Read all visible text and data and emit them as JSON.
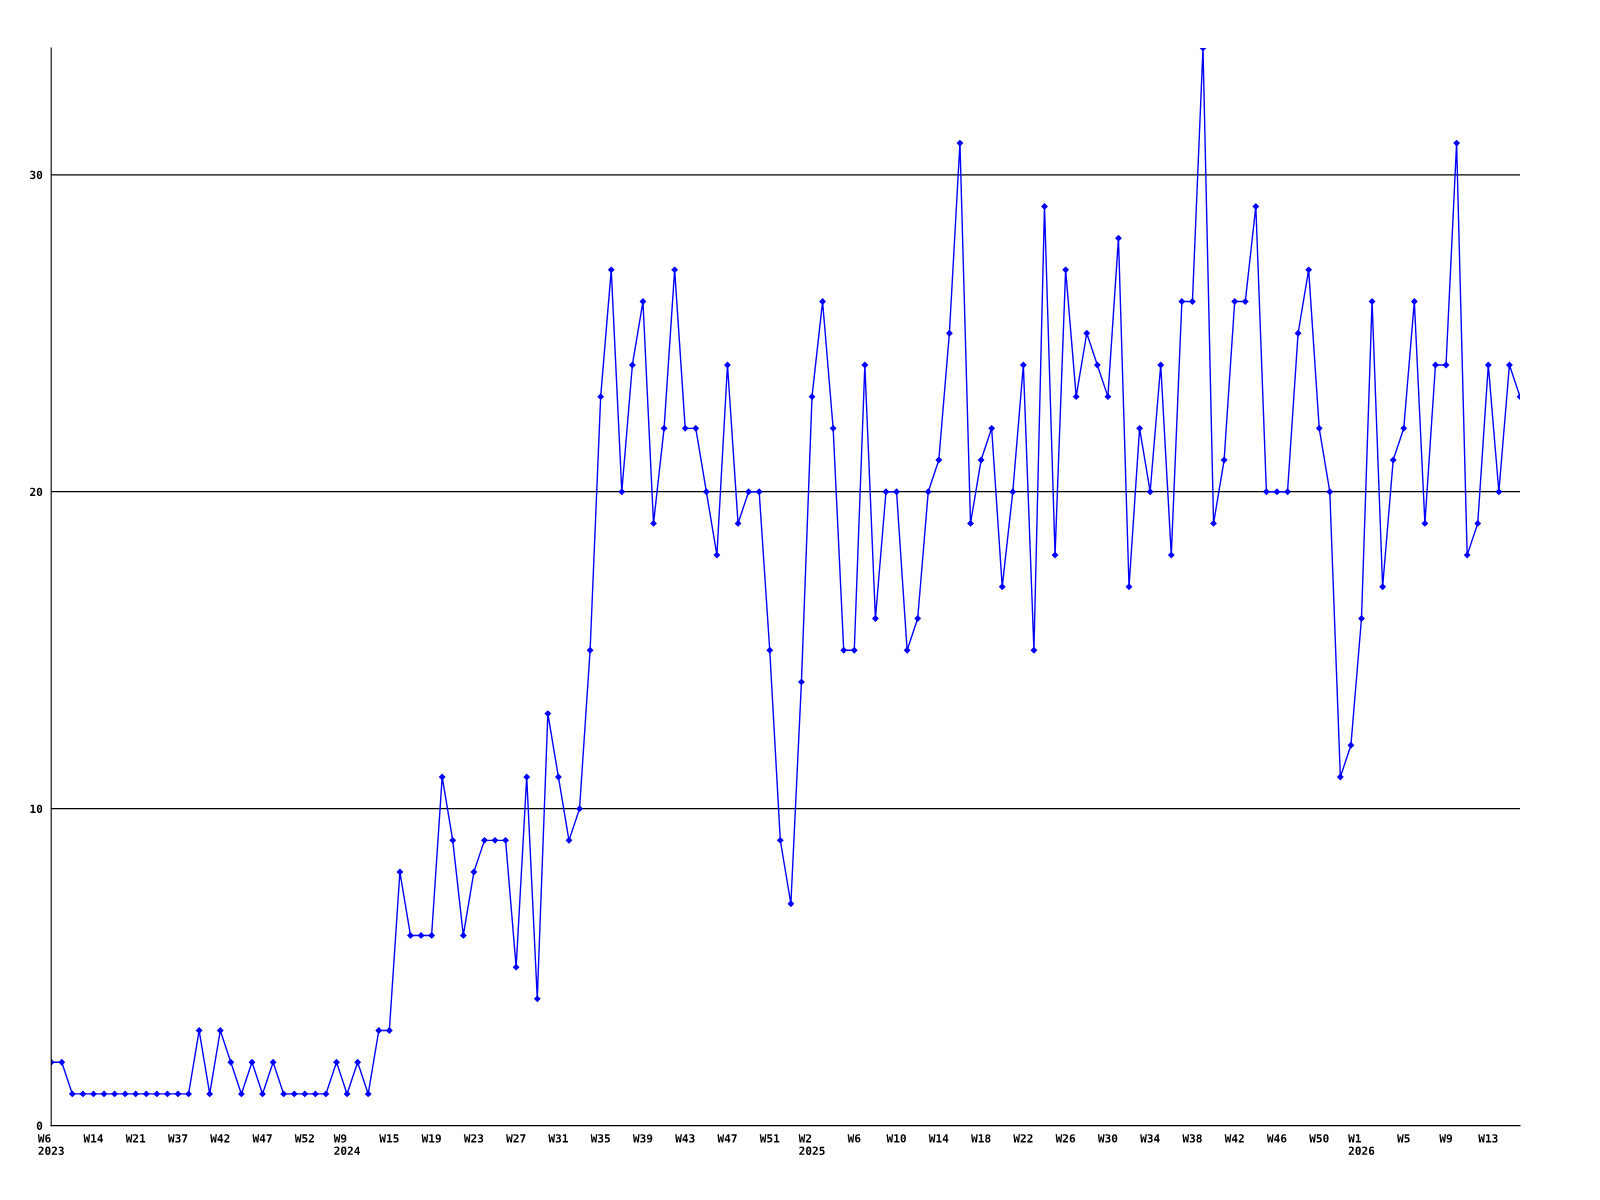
{
  "chart_data": {
    "type": "line",
    "categories": [
      "W6\n2023",
      null,
      null,
      null,
      "W14",
      null,
      null,
      null,
      "W21",
      null,
      null,
      null,
      "W37",
      null,
      null,
      null,
      "W42",
      null,
      null,
      null,
      "W47",
      null,
      null,
      null,
      "W52",
      null,
      null,
      null,
      "W9\n2024",
      null,
      null,
      null,
      "W15",
      null,
      null,
      null,
      "W19",
      null,
      null,
      null,
      "W23",
      null,
      null,
      null,
      "W27",
      null,
      null,
      null,
      "W31",
      null,
      null,
      null,
      "W35",
      null,
      null,
      null,
      "W39",
      null,
      null,
      null,
      "W43",
      null,
      null,
      null,
      "W47",
      null,
      null,
      null,
      "W51",
      null,
      null,
      null,
      "W2\n2025",
      null,
      null,
      null,
      "W6",
      null,
      null,
      null,
      "W10",
      null,
      null,
      null,
      "W14",
      null,
      null,
      null,
      "W18",
      null,
      null,
      null,
      "W22",
      null,
      null,
      null,
      "W26",
      null,
      null,
      null,
      "W30",
      null,
      null,
      null,
      "W34",
      null,
      null,
      null,
      "W38",
      null,
      null,
      null,
      "W42",
      null,
      null,
      null,
      "W46",
      null,
      null,
      null,
      "W50",
      null,
      null,
      null,
      "W1\n2026",
      null,
      null,
      null,
      "W5",
      null,
      null,
      null,
      "W9",
      null,
      null,
      null,
      "W13",
      null,
      null,
      null
    ],
    "series": [
      {
        "color": "#0000ff",
        "values": [
          2,
          2,
          1,
          1,
          1,
          1,
          1,
          1,
          1,
          1,
          1,
          1,
          1,
          1,
          3,
          1,
          3,
          2,
          1,
          2,
          1,
          2,
          1,
          1,
          1,
          1,
          1,
          2,
          1,
          2,
          1,
          3,
          3,
          8,
          6,
          6,
          6,
          11,
          9,
          6,
          8,
          9,
          9,
          9,
          5,
          11,
          4,
          13,
          11,
          9,
          10,
          15,
          23,
          27,
          20,
          24,
          26,
          19,
          22,
          27,
          22,
          22,
          20,
          18,
          24,
          19,
          20,
          20,
          15,
          9,
          7,
          14,
          23,
          26,
          22,
          15,
          15,
          24,
          16,
          20,
          20,
          15,
          16,
          20,
          21,
          25,
          31,
          19,
          21,
          22,
          17,
          20,
          24,
          15,
          29,
          18,
          27,
          23,
          25,
          24,
          23,
          28,
          17,
          22,
          20,
          24,
          18,
          26,
          26,
          34,
          19,
          21,
          26,
          26,
          29,
          20,
          20,
          20,
          25,
          27,
          22,
          20,
          11,
          12,
          16,
          26,
          17,
          21,
          22,
          26,
          19,
          24,
          24,
          31,
          18,
          19,
          24,
          20,
          24,
          23
        ]
      }
    ],
    "ylim": [
      0,
      34
    ],
    "yticks": [
      0,
      10,
      20,
      30
    ],
    "grid": "y",
    "marker": "diamond",
    "line_style": "solid",
    "legend": false
  }
}
